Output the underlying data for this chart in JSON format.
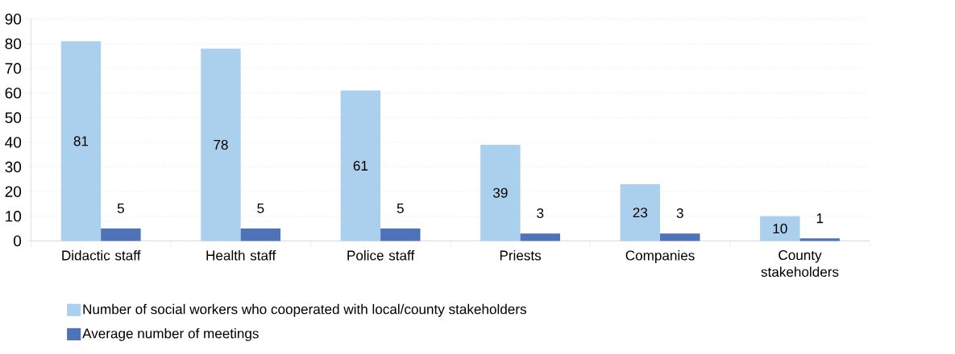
{
  "chart_data": {
    "type": "bar",
    "categories": [
      "Didactic staff",
      "Health staff",
      "Police staff",
      "Priests",
      "Companies",
      "County stakeholders"
    ],
    "series": [
      {
        "name": "Number of social workers who cooperated with local/county stakeholders",
        "color": "#abd0ee",
        "values": [
          81,
          78,
          61,
          39,
          23,
          10
        ]
      },
      {
        "name": "Average number of meetings",
        "color": "#4f72b8",
        "values": [
          5,
          5,
          5,
          3,
          3,
          1
        ]
      }
    ],
    "ylim": [
      0,
      90
    ],
    "yticks": [
      0,
      10,
      20,
      30,
      40,
      50,
      60,
      70,
      80,
      90
    ],
    "grid": "y",
    "legend": "bottom",
    "data_labels": true
  }
}
